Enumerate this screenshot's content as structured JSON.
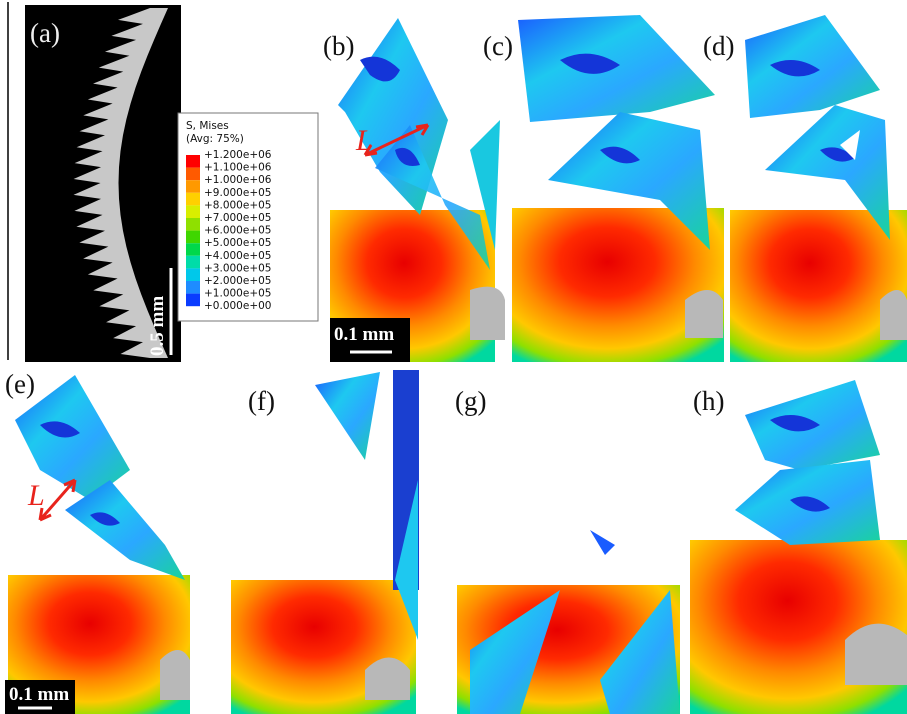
{
  "panels": [
    {
      "label": "(a)"
    },
    {
      "label": "(b)"
    },
    {
      "label": "(c)"
    },
    {
      "label": "(d)"
    },
    {
      "label": "(e)"
    },
    {
      "label": "(f)"
    },
    {
      "label": "(g)"
    },
    {
      "label": "(h)"
    }
  ],
  "scale_bars": [
    "0.5 mm",
    "0.1 mm",
    "0.1 mm"
  ],
  "annotations": [
    "L",
    "L"
  ],
  "legend": {
    "title": "S, Mises",
    "subtitle": "(Avg: 75%)",
    "labels": [
      "+1.200e+06",
      "+1.100e+06",
      "+1.000e+06",
      "+9.000e+05",
      "+8.000e+05",
      "+7.000e+05",
      "+6.000e+05",
      "+5.000e+05",
      "+4.000e+05",
      "+3.000e+05",
      "+2.000e+05",
      "+1.000e+05",
      "+0.000e+00"
    ],
    "colors": [
      "#ff0000",
      "#ff5a00",
      "#ff9900",
      "#ffd000",
      "#d8ee00",
      "#8fe000",
      "#3fd600",
      "#00d84a",
      "#00dca8",
      "#00c8ea",
      "#1e8cff",
      "#0a3cff"
    ]
  }
}
